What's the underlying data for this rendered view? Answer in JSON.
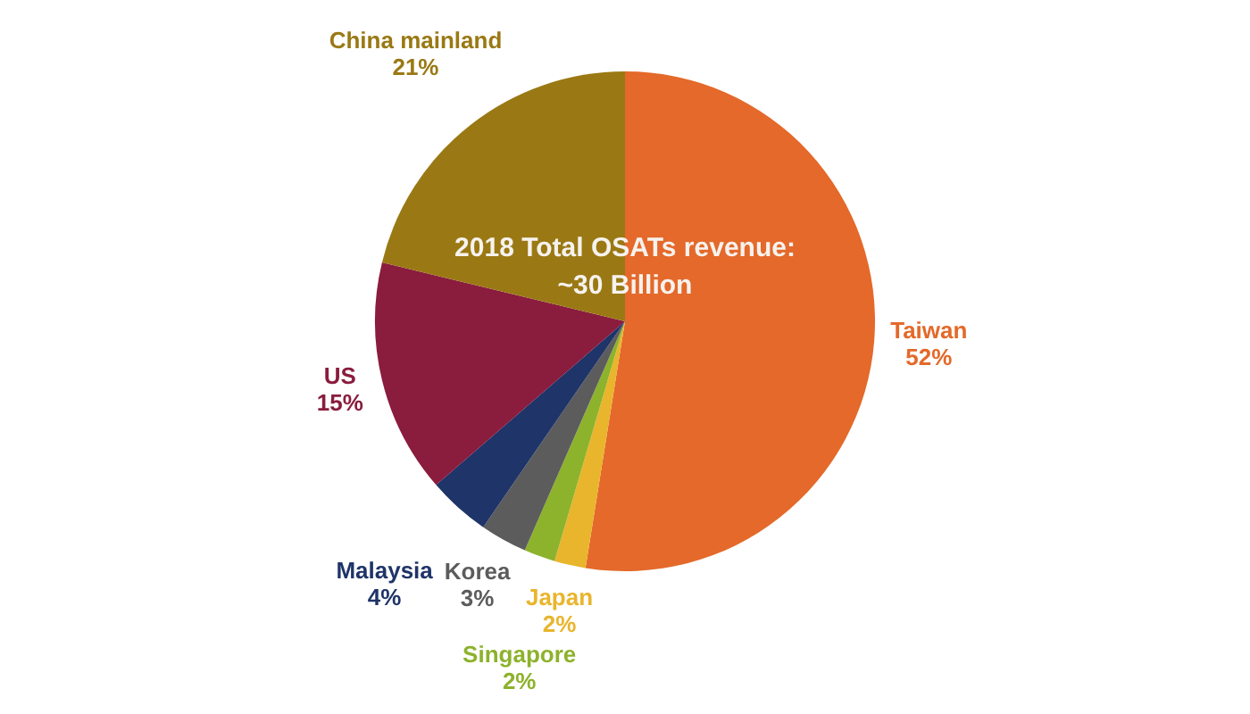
{
  "chart_data": {
    "type": "pie",
    "categories": [
      "Taiwan",
      "Japan",
      "Singapore",
      "Korea",
      "Malaysia",
      "US",
      "China mainland"
    ],
    "values": [
      52,
      2,
      2,
      3,
      4,
      15,
      21
    ],
    "value_labels": [
      "52%",
      "2%",
      "2%",
      "3%",
      "4%",
      "15%",
      "21%"
    ],
    "colors": [
      "#e4692a",
      "#e9b52c",
      "#8db22c",
      "#5c5c5c",
      "#1f3468",
      "#8a1c3e",
      "#9a7914"
    ],
    "annotations": [
      "2018 Total OSATs revenue:",
      "~30 Billion"
    ]
  }
}
